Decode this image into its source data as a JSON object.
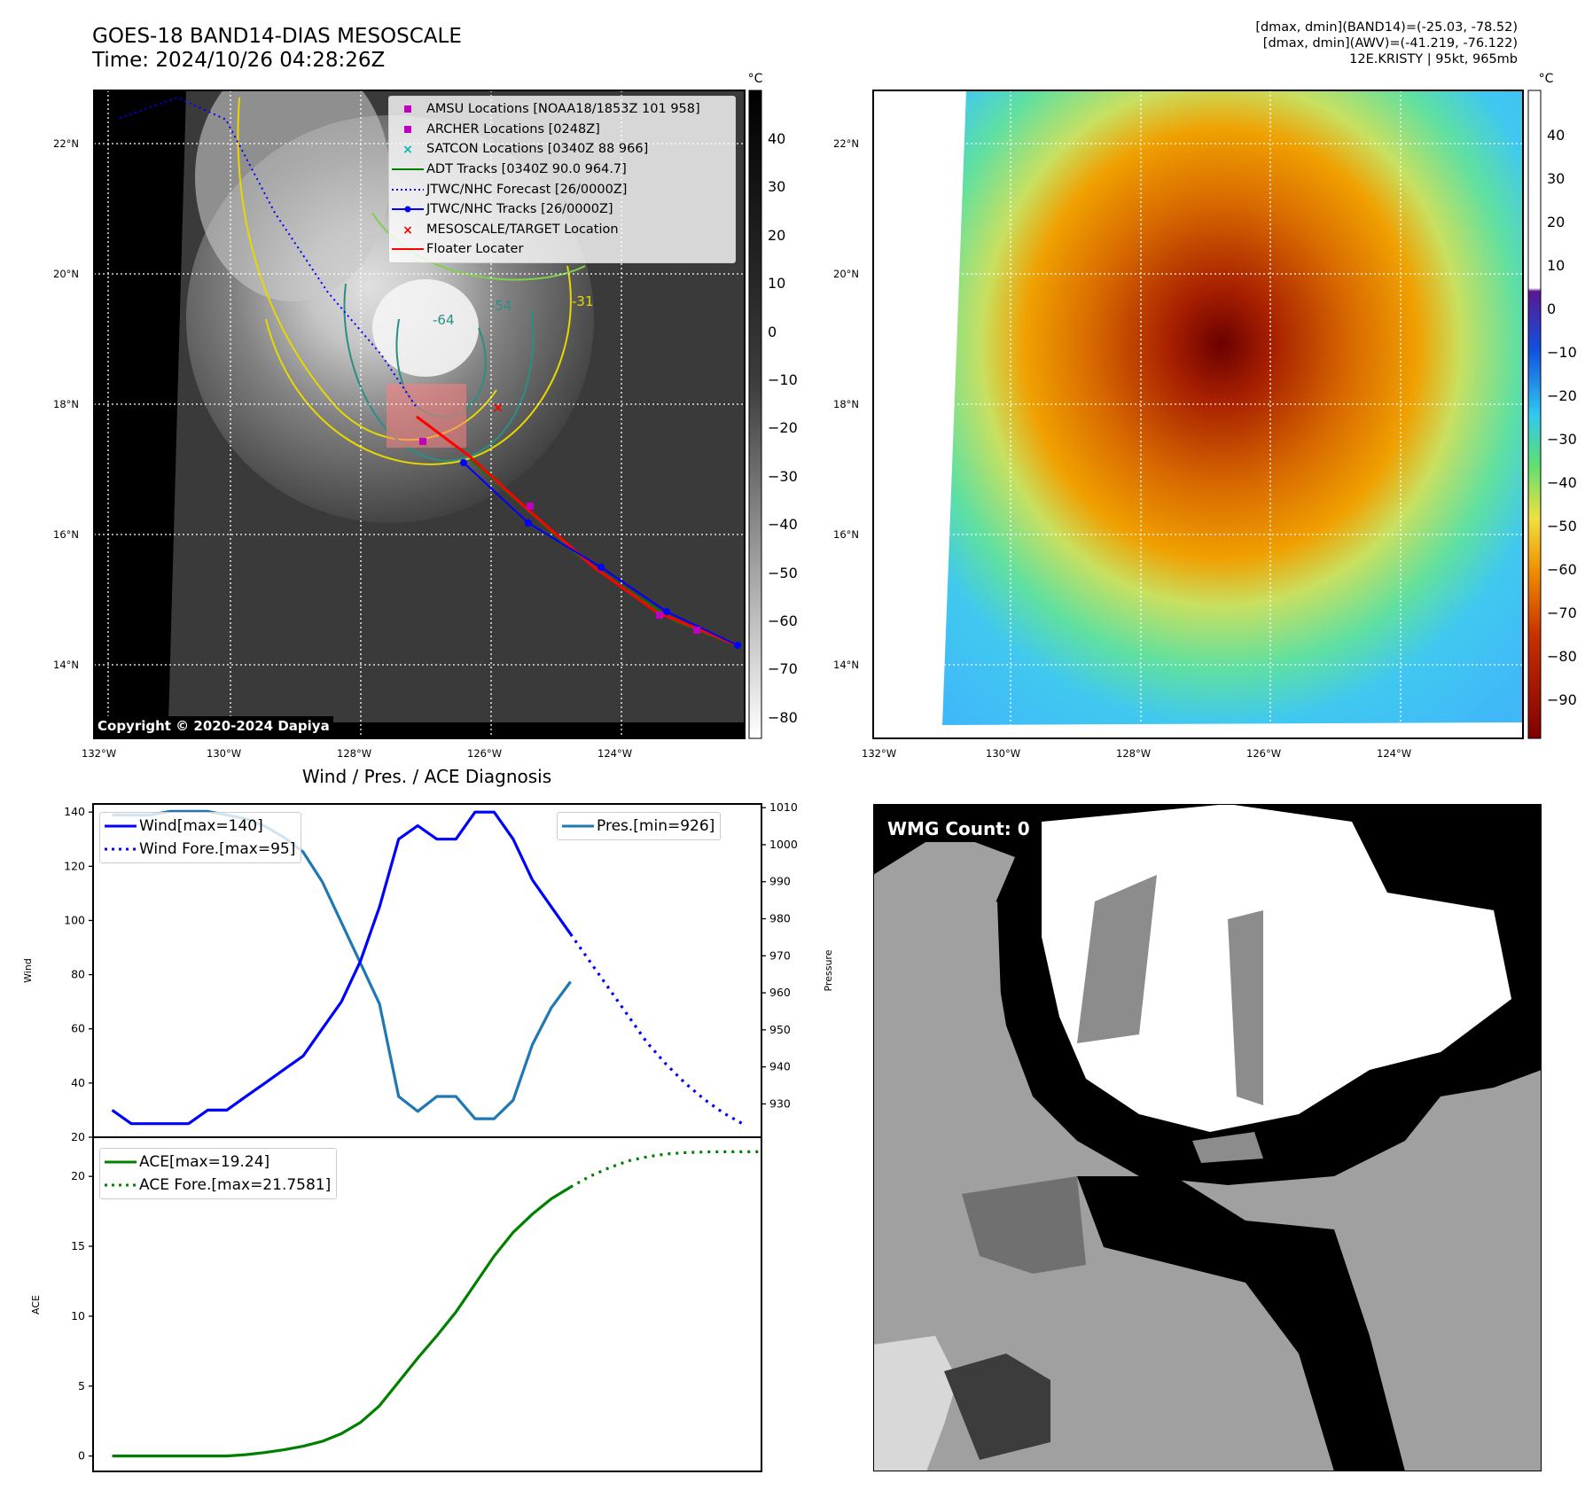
{
  "header": {
    "title_line1": "GOES-18 BAND14-DIAS MESOSCALE",
    "title_line2": "Time: 2024/10/26 04:28:26Z",
    "info_line1": "[dmax, dmin](BAND14)=(-25.03, -78.52)",
    "info_line2": "[dmax, dmin](AWV)=(-41.219, -76.122)",
    "info_line3": "12E.KRISTY | 95kt, 965mb"
  },
  "ir_map": {
    "copyright": "Copyright © 2020-2024 Dapiya",
    "colorbar_unit": "°C",
    "colorbar_ticks": [
      "40",
      "30",
      "20",
      "10",
      "0",
      "−10",
      "−20",
      "−30",
      "−40",
      "−50",
      "−60",
      "−70",
      "−80"
    ],
    "lat_labels": [
      "22°N",
      "20°N",
      "18°N",
      "16°N",
      "14°N"
    ],
    "lon_labels": [
      "132°W",
      "130°W",
      "128°W",
      "126°W",
      "124°W"
    ],
    "contour_labels": [
      "-64",
      "-54",
      "-31"
    ],
    "legend": [
      {
        "label": "AMSU Locations [NOAA18/1853Z 101 958]",
        "symbol": "square",
        "color": "#c000c0"
      },
      {
        "label": "ARCHER Locations [0248Z]",
        "symbol": "square",
        "color": "#c000c0"
      },
      {
        "label": "SATCON Locations [0340Z 88 966]",
        "symbol": "x",
        "color": "#00b8b8"
      },
      {
        "label": "ADT Tracks [0340Z 90.0 964.7]",
        "symbol": "line",
        "color": "#008000"
      },
      {
        "label": "JTWC/NHC Forecast [26/0000Z]",
        "symbol": "dotted",
        "color": "#0000ff"
      },
      {
        "label": "JTWC/NHC Tracks [26/0000Z]",
        "symbol": "linedot",
        "color": "#0000ff"
      },
      {
        "label": "MESOSCALE/TARGET Location",
        "symbol": "x",
        "color": "#ff0000"
      },
      {
        "label": "Floater Locater",
        "symbol": "line",
        "color": "#ff0000"
      }
    ]
  },
  "wv_map": {
    "colorbar_unit": "°C",
    "colorbar_ticks": [
      "40",
      "30",
      "20",
      "10",
      "0",
      "−10",
      "−20",
      "−30",
      "−40",
      "−50",
      "−60",
      "−70",
      "−80",
      "−90"
    ],
    "lat_labels": [
      "22°N",
      "20°N",
      "18°N",
      "16°N",
      "14°N"
    ],
    "lon_labels": [
      "132°W",
      "130°W",
      "128°W",
      "126°W",
      "124°W"
    ]
  },
  "diag": {
    "title": "Wind / Pres. / ACE Diagnosis",
    "wind_axis_label": "Wind",
    "pres_axis_label": "Pressure",
    "ace_axis_label": "ACE",
    "legend_wind": "Wind[max=140]",
    "legend_wind_fore": "Wind Fore.[max=95]",
    "legend_pres": "Pres.[min=926]",
    "legend_ace": "ACE[max=19.24]",
    "legend_ace_fore": "ACE Fore.[max=21.7581]"
  },
  "wmg": {
    "label": "WMG Count: 0"
  },
  "chart_data": [
    {
      "type": "line",
      "title": "Wind / Pres. / ACE Diagnosis",
      "ylabel": "Wind",
      "ylim": [
        20,
        143
      ],
      "xlim": [
        -1,
        34
      ],
      "yticks": [
        20,
        40,
        60,
        80,
        100,
        120,
        140
      ],
      "series": [
        {
          "name": "Wind[max=140]",
          "color": "#0000ff",
          "style": "solid",
          "x": [
            0,
            1,
            2,
            3,
            4,
            5,
            6,
            7,
            8,
            9,
            10,
            11,
            12,
            13,
            14,
            15,
            16,
            17,
            18,
            19,
            20,
            21,
            22
          ],
          "values": [
            30,
            25,
            25,
            25,
            25,
            30,
            30,
            35,
            40,
            45,
            50,
            60,
            70,
            85,
            105,
            130,
            135,
            130,
            130,
            140,
            140,
            130,
            115
          ]
        },
        {
          "name": "Wind Fore.[max=95]",
          "color": "#0000ff",
          "style": "dotted",
          "x": [
            24,
            25,
            26,
            27,
            28,
            29,
            30,
            31,
            32,
            33
          ],
          "values": [
            95,
            85,
            75,
            65,
            55,
            47,
            40,
            34,
            29,
            25
          ]
        },
        {
          "name": "Wind (connector)",
          "color": "#0000ff",
          "style": "solid",
          "x": [
            22,
            23,
            24
          ],
          "values": [
            115,
            105,
            95
          ]
        }
      ]
    },
    {
      "type": "line",
      "ylabel": "Pressure",
      "ylim": [
        921,
        1011
      ],
      "yticks": [
        930,
        940,
        950,
        960,
        970,
        980,
        990,
        1000,
        1010
      ],
      "series": [
        {
          "name": "Pres.[min=926]",
          "color": "#1f77b4",
          "style": "solid",
          "x": [
            0,
            1,
            2,
            3,
            4,
            5,
            6,
            7,
            8,
            9,
            10,
            11,
            12,
            13,
            14,
            15,
            16,
            17,
            18,
            19,
            20,
            21,
            22,
            23,
            24
          ],
          "values": [
            1008,
            1008,
            1008,
            1009,
            1009,
            1009,
            1008,
            1007,
            1005,
            1002,
            998,
            990,
            979,
            968,
            957,
            932,
            928,
            932,
            932,
            926,
            926,
            931,
            946,
            956,
            963
          ]
        }
      ]
    },
    {
      "type": "line",
      "ylabel": "ACE",
      "ylim": [
        -1.1,
        22.8
      ],
      "yticks": [
        0,
        5,
        10,
        15,
        20
      ],
      "series": [
        {
          "name": "ACE[max=19.24]",
          "color": "#008000",
          "style": "solid",
          "x": [
            0,
            1,
            2,
            3,
            4,
            5,
            6,
            7,
            8,
            9,
            10,
            11,
            12,
            13,
            14,
            15,
            16,
            17,
            18,
            19,
            20,
            21,
            22,
            23,
            24
          ],
          "values": [
            0,
            0,
            0,
            0,
            0,
            0,
            0,
            0.1,
            0.25,
            0.45,
            0.7,
            1.05,
            1.6,
            2.4,
            3.6,
            5.3,
            7.0,
            8.6,
            10.3,
            12.3,
            14.3,
            16.0,
            17.3,
            18.4,
            19.24
          ]
        },
        {
          "name": "ACE Fore.[max=21.7581]",
          "color": "#008000",
          "style": "dotted",
          "x": [
            24,
            25,
            26,
            27,
            28,
            29,
            30,
            31,
            32,
            33,
            34
          ],
          "values": [
            19.24,
            20.0,
            20.6,
            21.1,
            21.4,
            21.6,
            21.7,
            21.75,
            21.76,
            21.76,
            21.76
          ]
        }
      ]
    }
  ]
}
